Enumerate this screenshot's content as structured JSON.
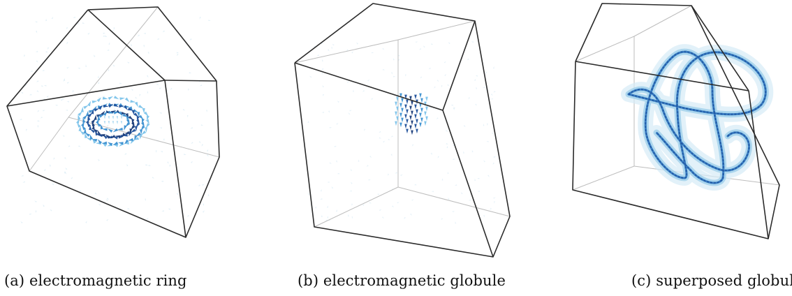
{
  "captions": {
    "a": "(a) electromagnetic ring",
    "b": "(b) electromagnetic globule",
    "c": "(c) superposed globules"
  },
  "colors": {
    "cube_edge": "#2b2b2b",
    "cube_hidden_edge": "#bdbdbd",
    "field_faint": "#cfe6f2",
    "field_light": "#7cc3ea",
    "field_mid": "#3a8fd0",
    "field_dark": "#1d4f9a",
    "field_darkest": "#173a78"
  },
  "panels": [
    {
      "id": "a",
      "structure": "ring"
    },
    {
      "id": "b",
      "structure": "globule"
    },
    {
      "id": "c",
      "structure": "superposed-globules"
    }
  ]
}
